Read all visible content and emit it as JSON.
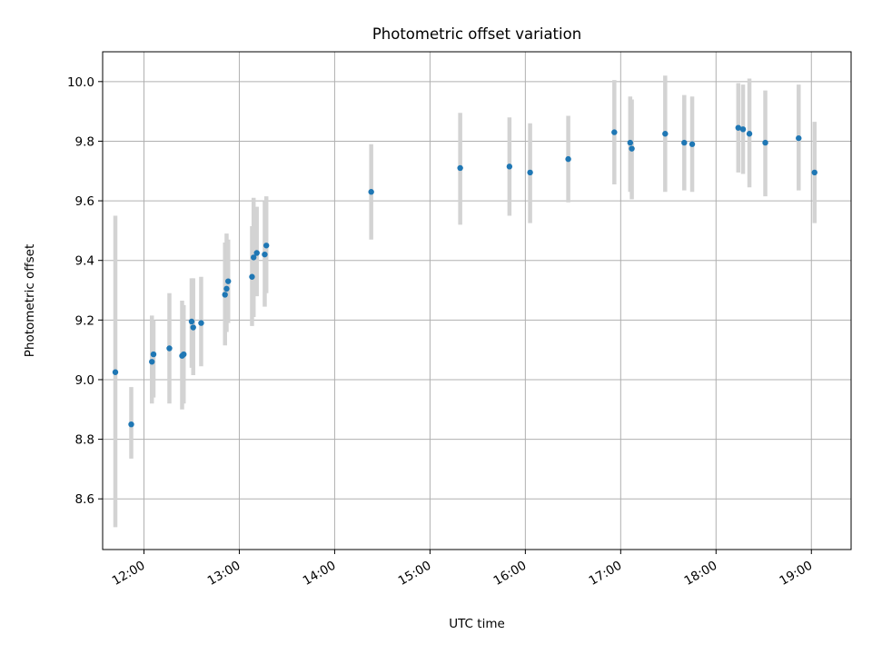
{
  "chart_data": {
    "type": "scatter",
    "title": "Photometric offset variation",
    "xlabel": "UTC time",
    "ylabel": "Photometric offset",
    "xlim": [
      "11:34",
      "19:25"
    ],
    "ylim": [
      8.43,
      10.1
    ],
    "x_ticks": [
      "12:00",
      "13:00",
      "14:00",
      "15:00",
      "16:00",
      "17:00",
      "18:00",
      "19:00"
    ],
    "y_ticks": [
      "8.6",
      "8.8",
      "9.0",
      "9.2",
      "9.4",
      "9.6",
      "9.8",
      "10.0"
    ],
    "grid": true,
    "error_bar_color": "#d3d3d3",
    "marker_color": "#1f77b4",
    "points": [
      {
        "x": "11:42",
        "y": 9.025,
        "lo": 8.505,
        "hi": 9.55
      },
      {
        "x": "11:52",
        "y": 8.85,
        "lo": 8.735,
        "hi": 8.975
      },
      {
        "x": "12:05",
        "y": 9.06,
        "lo": 8.92,
        "hi": 9.215
      },
      {
        "x": "12:06",
        "y": 9.085,
        "lo": 8.94,
        "hi": 9.2
      },
      {
        "x": "12:16",
        "y": 9.105,
        "lo": 8.92,
        "hi": 9.29
      },
      {
        "x": "12:24",
        "y": 9.08,
        "lo": 8.9,
        "hi": 9.265
      },
      {
        "x": "12:25",
        "y": 9.085,
        "lo": 8.92,
        "hi": 9.25
      },
      {
        "x": "12:30",
        "y": 9.195,
        "lo": 9.04,
        "hi": 9.34
      },
      {
        "x": "12:31",
        "y": 9.175,
        "lo": 9.015,
        "hi": 9.34
      },
      {
        "x": "12:36",
        "y": 9.19,
        "lo": 9.045,
        "hi": 9.345
      },
      {
        "x": "12:51",
        "y": 9.285,
        "lo": 9.115,
        "hi": 9.46
      },
      {
        "x": "12:52",
        "y": 9.305,
        "lo": 9.16,
        "hi": 9.49
      },
      {
        "x": "12:53",
        "y": 9.33,
        "lo": 9.19,
        "hi": 9.47
      },
      {
        "x": "13:08",
        "y": 9.345,
        "lo": 9.18,
        "hi": 9.515
      },
      {
        "x": "13:09",
        "y": 9.41,
        "lo": 9.21,
        "hi": 9.61
      },
      {
        "x": "13:11",
        "y": 9.425,
        "lo": 9.28,
        "hi": 9.58
      },
      {
        "x": "13:16",
        "y": 9.42,
        "lo": 9.245,
        "hi": 9.6
      },
      {
        "x": "13:17",
        "y": 9.45,
        "lo": 9.29,
        "hi": 9.615
      },
      {
        "x": "14:23",
        "y": 9.63,
        "lo": 9.47,
        "hi": 9.79
      },
      {
        "x": "15:19",
        "y": 9.71,
        "lo": 9.52,
        "hi": 9.895
      },
      {
        "x": "15:50",
        "y": 9.715,
        "lo": 9.55,
        "hi": 9.88
      },
      {
        "x": "16:03",
        "y": 9.695,
        "lo": 9.525,
        "hi": 9.86
      },
      {
        "x": "16:27",
        "y": 9.74,
        "lo": 9.595,
        "hi": 9.885
      },
      {
        "x": "16:56",
        "y": 9.83,
        "lo": 9.655,
        "hi": 10.005
      },
      {
        "x": "17:06",
        "y": 9.795,
        "lo": 9.63,
        "hi": 9.95
      },
      {
        "x": "17:07",
        "y": 9.775,
        "lo": 9.605,
        "hi": 9.94
      },
      {
        "x": "17:28",
        "y": 9.825,
        "lo": 9.63,
        "hi": 10.02
      },
      {
        "x": "17:40",
        "y": 9.795,
        "lo": 9.635,
        "hi": 9.955
      },
      {
        "x": "17:45",
        "y": 9.79,
        "lo": 9.63,
        "hi": 9.95
      },
      {
        "x": "18:14",
        "y": 9.845,
        "lo": 9.695,
        "hi": 9.995
      },
      {
        "x": "18:17",
        "y": 9.84,
        "lo": 9.69,
        "hi": 9.99
      },
      {
        "x": "18:21",
        "y": 9.825,
        "lo": 9.645,
        "hi": 10.01
      },
      {
        "x": "18:31",
        "y": 9.795,
        "lo": 9.615,
        "hi": 9.97
      },
      {
        "x": "18:52",
        "y": 9.81,
        "lo": 9.635,
        "hi": 9.99
      },
      {
        "x": "19:02",
        "y": 9.695,
        "lo": 9.525,
        "hi": 9.865
      }
    ]
  }
}
